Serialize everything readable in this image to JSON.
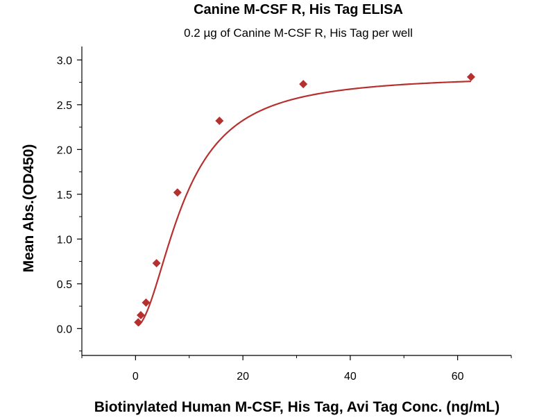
{
  "chart_data": {
    "type": "scatter",
    "title": "Canine M-CSF R, His Tag ELISA",
    "subtitle": "0.2 µg of Canine M-CSF R, His Tag per well",
    "xlabel": "Biotinylated Human M-CSF, His Tag, Avi Tag Conc. (ng/mL)",
    "ylabel": "Mean Abs.(OD450)",
    "xlim": [
      -10,
      70
    ],
    "ylim": [
      -0.3,
      3.15
    ],
    "x_ticks": [
      0,
      20,
      40,
      60
    ],
    "y_ticks": [
      0.0,
      0.5,
      1.0,
      1.5,
      2.0,
      2.5,
      3.0
    ],
    "x_tick_labels": [
      "0",
      "20",
      "40",
      "60"
    ],
    "y_tick_labels": [
      "0.0",
      "0.5",
      "1.0",
      "1.5",
      "2.0",
      "2.5",
      "3.0"
    ],
    "grid": false,
    "color": "#b5302f",
    "series": [
      {
        "marker": "diamond",
        "x": [
          0.49,
          0.98,
          1.95,
          3.91,
          7.81,
          15.63,
          31.25,
          62.5
        ],
        "y": [
          0.07,
          0.15,
          0.29,
          0.73,
          1.52,
          2.32,
          2.73,
          2.81
        ]
      }
    ],
    "fit": {
      "type": "4PL",
      "bottom": 0.02,
      "top": 2.83,
      "ec50": 9.0,
      "hill": 1.9
    }
  }
}
